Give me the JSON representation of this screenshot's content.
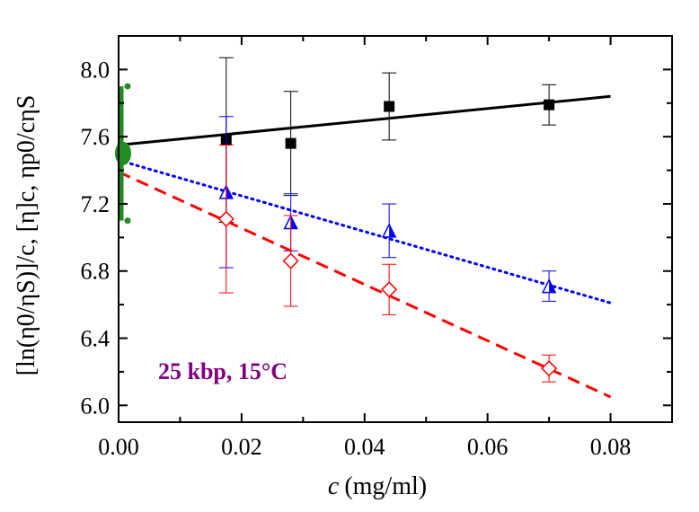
{
  "chart_data": {
    "type": "scatter",
    "xlabel_var": "c",
    "xlabel_unit": "(mg/ml)",
    "ylabel": "[ln(η0/ηS)]/c, [η]c, ηp0/cηS",
    "xlim": [
      0.0,
      0.09
    ],
    "ylim": [
      5.9,
      8.2
    ],
    "x_ticks": [
      0.0,
      0.02,
      0.04,
      0.06,
      0.08
    ],
    "x_tick_labels": [
      "0.00",
      "0.02",
      "0.04",
      "0.06",
      "0.08"
    ],
    "y_ticks": [
      6.0,
      6.4,
      6.8,
      7.2,
      7.6,
      8.0
    ],
    "y_tick_labels": [
      "6.0",
      "6.4",
      "6.8",
      "7.2",
      "7.6",
      "8.0"
    ],
    "annotation": "25 kbp, 15°C",
    "annotation_color": "#800080",
    "series": [
      {
        "marker": "square-filled",
        "color": "#000000",
        "x": [
          0.0175,
          0.028,
          0.044,
          0.07
        ],
        "y": [
          7.58,
          7.56,
          7.78,
          7.79
        ],
        "err": [
          0.49,
          0.31,
          0.2,
          0.12
        ],
        "fit": {
          "style": "solid",
          "x": [
            0.0,
            0.08
          ],
          "y": [
            7.55,
            7.84
          ]
        }
      },
      {
        "marker": "triangle-half",
        "color": "#0000ff",
        "x": [
          0.0175,
          0.028,
          0.044,
          0.07
        ],
        "y": [
          7.27,
          7.09,
          7.04,
          6.71
        ],
        "err": [
          0.45,
          0.17,
          0.16,
          0.09
        ],
        "fit": {
          "style": "dotted",
          "x": [
            0.0,
            0.08
          ],
          "y": [
            7.46,
            6.61
          ]
        }
      },
      {
        "marker": "diamond-open",
        "color": "#ff0000",
        "x": [
          0.0175,
          0.028,
          0.044,
          0.07
        ],
        "y": [
          7.11,
          6.86,
          6.69,
          6.22
        ],
        "err": [
          0.44,
          0.27,
          0.15,
          0.08
        ],
        "fit": {
          "style": "dashed",
          "x": [
            0.0,
            0.08
          ],
          "y": [
            7.39,
            6.05
          ]
        }
      }
    ],
    "intercept": {
      "color": "#228b22",
      "x": 0.0,
      "y": 7.5,
      "y_low": 7.1,
      "y_high": 7.9
    }
  }
}
